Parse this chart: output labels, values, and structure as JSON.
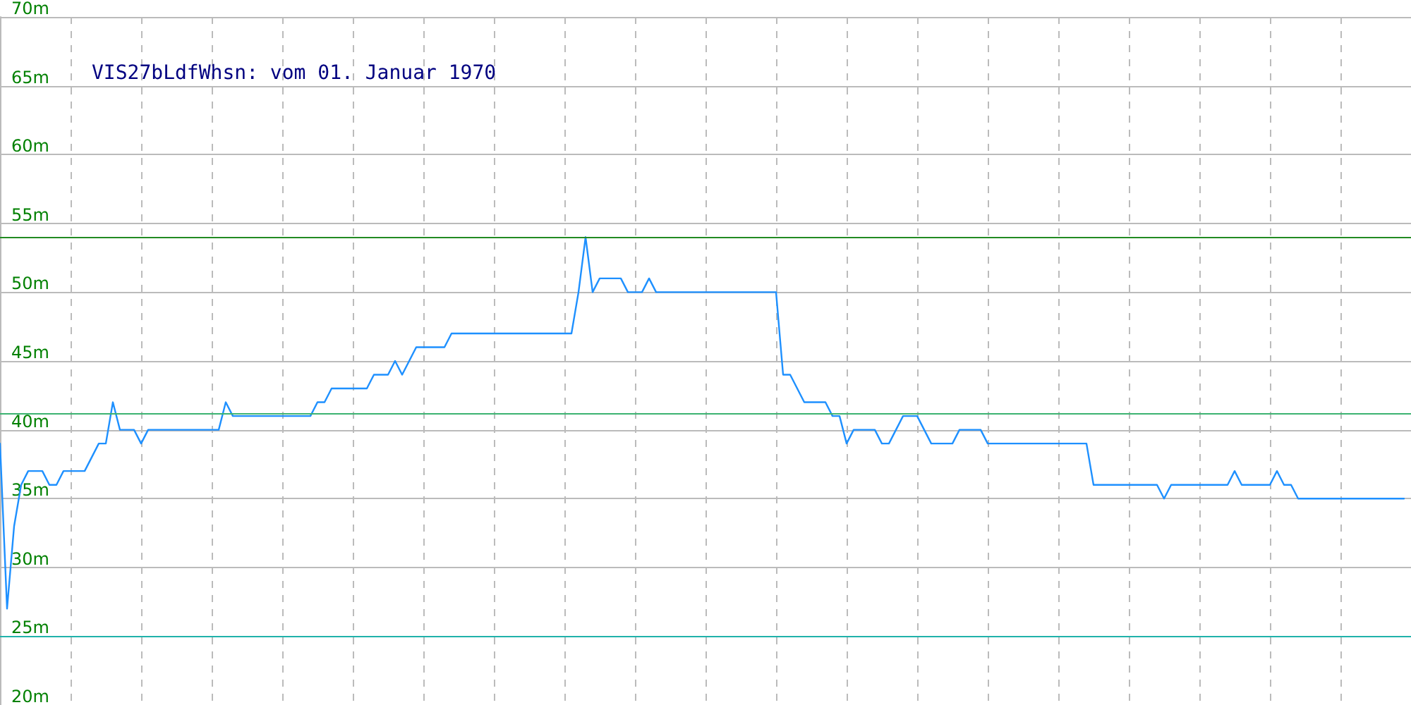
{
  "chart_data": {
    "type": "line",
    "title": "VIS27bLdfWhsn: vom 01. Januar 1970",
    "categories": [
      null,
      null,
      null,
      null,
      null,
      null,
      null,
      null,
      null,
      null,
      null,
      null,
      null,
      null,
      null,
      null,
      null,
      null,
      null,
      null,
      null,
      null,
      null,
      null,
      null,
      null,
      null,
      null,
      null,
      null,
      null,
      null,
      null,
      null,
      null,
      null,
      null,
      null,
      null,
      null,
      null,
      null,
      null,
      null,
      null,
      null,
      null,
      null,
      null,
      null,
      null,
      null,
      null,
      null,
      null,
      null,
      null,
      null,
      null,
      null,
      null,
      null,
      null,
      null,
      null,
      null,
      null,
      null,
      null,
      null,
      null,
      null,
      null,
      null,
      null,
      null,
      null,
      null,
      null,
      null,
      null,
      null,
      null,
      null,
      null,
      null,
      null,
      null,
      null,
      null,
      null,
      null,
      null,
      null,
      null,
      null,
      null,
      null,
      null,
      null,
      null,
      null,
      null,
      null,
      null,
      null,
      null,
      null,
      null,
      null,
      null,
      null,
      null,
      null,
      null,
      null,
      null,
      null,
      null,
      null,
      null,
      null,
      null,
      null,
      null,
      null,
      null,
      null,
      null,
      null,
      null,
      null,
      null,
      null,
      null,
      null,
      null,
      null,
      null,
      null,
      null,
      null,
      null,
      null,
      null,
      null,
      null,
      null,
      null,
      null,
      null,
      null,
      null,
      null,
      null,
      null,
      null,
      null,
      null,
      null,
      null,
      null,
      null,
      null,
      null,
      null,
      null,
      null,
      null,
      null,
      null,
      null,
      null,
      null,
      null,
      null,
      null,
      null,
      null,
      null,
      null,
      null,
      null,
      null,
      null,
      null,
      null,
      null,
      null,
      null,
      null,
      null,
      null,
      null,
      null,
      null,
      null,
      null,
      null,
      null,
      null
    ],
    "series": [
      {
        "color": "#1e90ff",
        "values": [
          39,
          27,
          33,
          36,
          37,
          37,
          37,
          36,
          36,
          37,
          37,
          37,
          37,
          38,
          39,
          39,
          42,
          40,
          40,
          40,
          39,
          40,
          40,
          40,
          40,
          40,
          40,
          40,
          40,
          40,
          40,
          40,
          42,
          41,
          41,
          41,
          41,
          41,
          41,
          41,
          41,
          41,
          41,
          41,
          41,
          42,
          42,
          43,
          43,
          43,
          43,
          43,
          43,
          44,
          44,
          44,
          45,
          44,
          45,
          46,
          46,
          46,
          46,
          46,
          47,
          47,
          47,
          47,
          47,
          47,
          47,
          47,
          47,
          47,
          47,
          47,
          47,
          47,
          47,
          47,
          47,
          47,
          50,
          54,
          50,
          51,
          51,
          51,
          51,
          50,
          50,
          50,
          51,
          50,
          50,
          50,
          50,
          50,
          50,
          50,
          50,
          50,
          50,
          50,
          50,
          50,
          50,
          50,
          50,
          50,
          50,
          44,
          44,
          43,
          42,
          42,
          42,
          42,
          41,
          41,
          39,
          40,
          40,
          40,
          40,
          39,
          39,
          40,
          41,
          41,
          41,
          40,
          39,
          39,
          39,
          39,
          40,
          40,
          40,
          40,
          39,
          39,
          39,
          39,
          39,
          39,
          39,
          39,
          39,
          39,
          39,
          39,
          39,
          39,
          39,
          36,
          36,
          36,
          36,
          36,
          36,
          36,
          36,
          36,
          36,
          35,
          36,
          36,
          36,
          36,
          36,
          36,
          36,
          36,
          36,
          37,
          36,
          36,
          36,
          36,
          36,
          37,
          36,
          36,
          35,
          35,
          35,
          35,
          35,
          35,
          35,
          35,
          35,
          35,
          35,
          35,
          35,
          35,
          35,
          35,
          null
        ]
      }
    ],
    "ylim": [
      20,
      70
    ],
    "yticks": [
      {
        "value": 20,
        "label": "20m"
      },
      {
        "value": 25,
        "label": "25m"
      },
      {
        "value": 30,
        "label": "30m"
      },
      {
        "value": 35,
        "label": "35m"
      },
      {
        "value": 40,
        "label": "40m"
      },
      {
        "value": 45,
        "label": "45m"
      },
      {
        "value": 50,
        "label": "50m"
      },
      {
        "value": 55,
        "label": "55m"
      },
      {
        "value": 60,
        "label": "60m"
      },
      {
        "value": 65,
        "label": "65m"
      },
      {
        "value": 70,
        "label": "70m"
      }
    ],
    "ref_lines": [
      {
        "axis": "y",
        "value": 54,
        "color": "#228b22"
      },
      {
        "axis": "y",
        "value": 41.2,
        "color": "#3cb371"
      },
      {
        "axis": "y",
        "value": 25,
        "color": "#20b2aa"
      }
    ],
    "grid": true,
    "tick_labels": "y",
    "line_style": "solid"
  }
}
